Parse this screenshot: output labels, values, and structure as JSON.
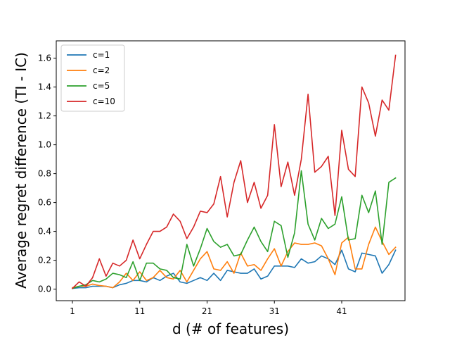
{
  "chart_data": {
    "type": "line",
    "title": "",
    "xlabel": "d (# of features)",
    "ylabel": "Average regret difference (TI - IC)",
    "xlim": [
      -1.4,
      50.4
    ],
    "ylim": [
      -0.08,
      1.72
    ],
    "xticks": [
      1,
      11,
      21,
      31,
      41
    ],
    "xtick_labels": [
      "1",
      "11",
      "21",
      "31",
      "41"
    ],
    "yticks": [
      0.0,
      0.2,
      0.4,
      0.6,
      0.8,
      1.0,
      1.2,
      1.4,
      1.6
    ],
    "ytick_labels": [
      "0.0",
      "0.2",
      "0.4",
      "0.6",
      "0.8",
      "1.0",
      "1.2",
      "1.4",
      "1.6"
    ],
    "grid": false,
    "legend_position": "top-left",
    "x": [
      1,
      2,
      3,
      4,
      5,
      6,
      7,
      8,
      9,
      10,
      11,
      12,
      13,
      14,
      15,
      16,
      17,
      18,
      19,
      20,
      21,
      22,
      23,
      24,
      25,
      26,
      27,
      28,
      29,
      30,
      31,
      32,
      33,
      34,
      35,
      36,
      37,
      38,
      39,
      40,
      41,
      42,
      43,
      44,
      45,
      46,
      47,
      48,
      49
    ],
    "series": [
      {
        "name": "c=1",
        "color": "#1f77b4",
        "values": [
          0.005,
          0.01,
          0.01,
          0.02,
          0.02,
          0.02,
          0.01,
          0.03,
          0.04,
          0.06,
          0.06,
          0.05,
          0.08,
          0.06,
          0.09,
          0.11,
          0.05,
          0.04,
          0.06,
          0.08,
          0.06,
          0.11,
          0.06,
          0.13,
          0.12,
          0.11,
          0.11,
          0.14,
          0.07,
          0.09,
          0.16,
          0.16,
          0.16,
          0.15,
          0.21,
          0.18,
          0.19,
          0.23,
          0.21,
          0.17,
          0.27,
          0.14,
          0.12,
          0.25,
          0.24,
          0.23,
          0.11,
          0.17,
          0.27
        ]
      },
      {
        "name": "c=2",
        "color": "#ff7f0e",
        "values": [
          0.01,
          0.02,
          0.02,
          0.035,
          0.025,
          0.02,
          0.01,
          0.05,
          0.11,
          0.06,
          0.12,
          0.06,
          0.08,
          0.13,
          0.08,
          0.07,
          0.13,
          0.05,
          0.13,
          0.21,
          0.26,
          0.14,
          0.13,
          0.19,
          0.11,
          0.25,
          0.16,
          0.17,
          0.13,
          0.21,
          0.28,
          0.16,
          0.26,
          0.32,
          0.31,
          0.31,
          0.32,
          0.3,
          0.21,
          0.1,
          0.32,
          0.36,
          0.14,
          0.14,
          0.31,
          0.43,
          0.33,
          0.24,
          0.29
        ]
      },
      {
        "name": "c=5",
        "color": "#2ca02c",
        "values": [
          0.005,
          0.02,
          0.03,
          0.06,
          0.05,
          0.07,
          0.11,
          0.1,
          0.08,
          0.19,
          0.06,
          0.18,
          0.18,
          0.14,
          0.13,
          0.08,
          0.07,
          0.31,
          0.16,
          0.28,
          0.42,
          0.33,
          0.29,
          0.31,
          0.23,
          0.24,
          0.34,
          0.43,
          0.33,
          0.26,
          0.47,
          0.44,
          0.22,
          0.39,
          0.82,
          0.45,
          0.34,
          0.49,
          0.42,
          0.45,
          0.64,
          0.34,
          0.35,
          0.65,
          0.53,
          0.68,
          0.31,
          0.74,
          0.77
        ]
      },
      {
        "name": "c=10",
        "color": "#d62728",
        "values": [
          0.005,
          0.05,
          0.02,
          0.08,
          0.21,
          0.09,
          0.18,
          0.16,
          0.2,
          0.34,
          0.21,
          0.31,
          0.4,
          0.4,
          0.43,
          0.52,
          0.47,
          0.35,
          0.43,
          0.54,
          0.53,
          0.59,
          0.78,
          0.5,
          0.74,
          0.89,
          0.6,
          0.74,
          0.56,
          0.65,
          1.14,
          0.71,
          0.88,
          0.65,
          0.9,
          1.35,
          0.81,
          0.85,
          0.92,
          0.51,
          1.1,
          0.83,
          0.78,
          1.4,
          1.29,
          1.06,
          1.31,
          1.24,
          1.62
        ]
      }
    ]
  }
}
